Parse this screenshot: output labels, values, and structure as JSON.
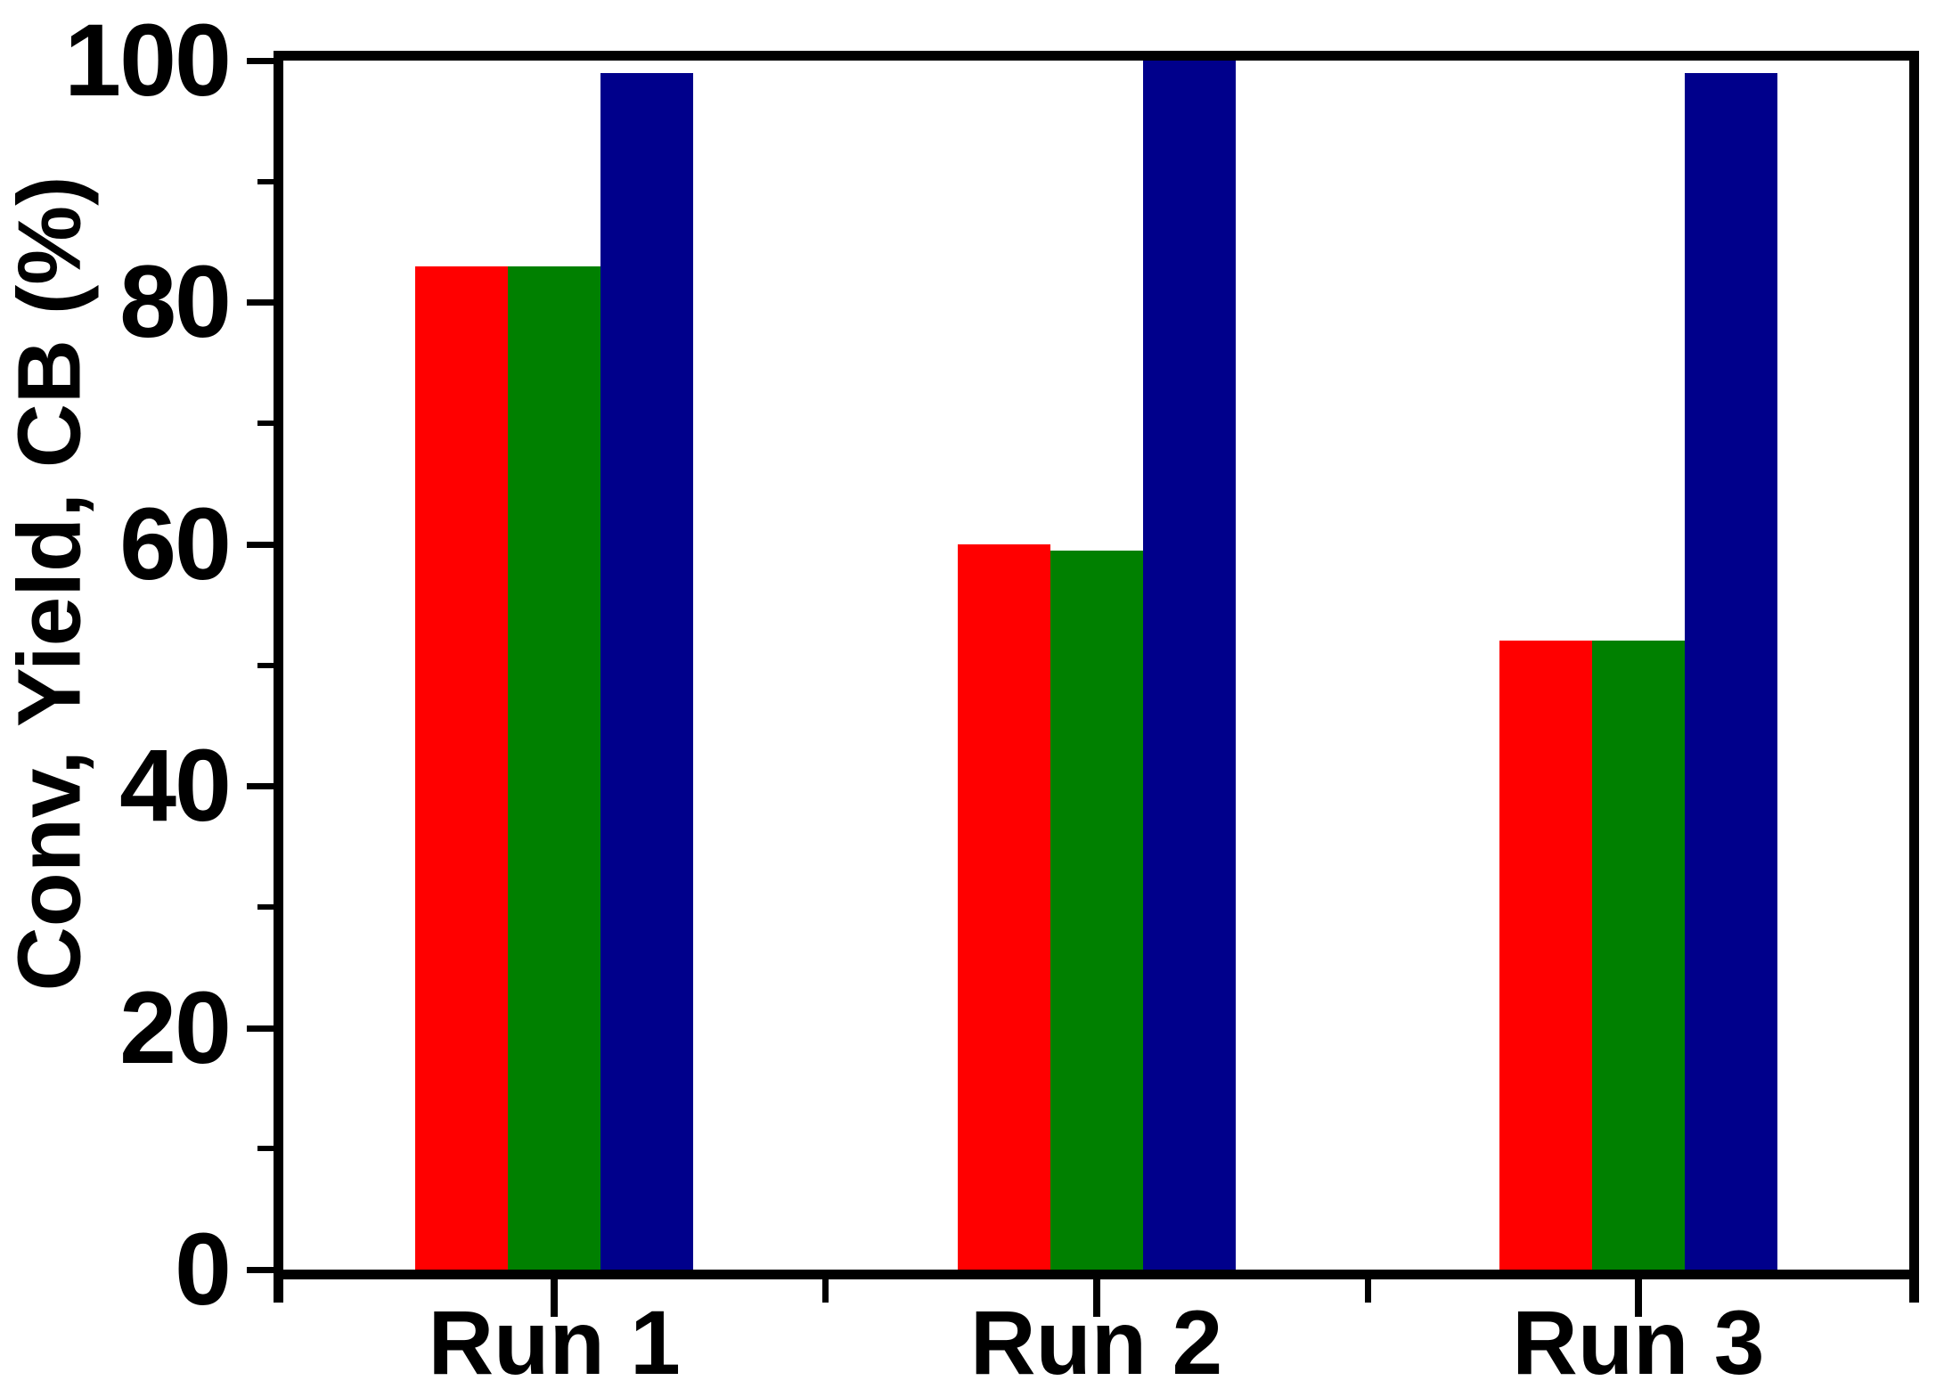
{
  "figure": {
    "background_color": "#ffffff",
    "axis_color": "#000000",
    "text_color": "#000000"
  },
  "chart_data": {
    "type": "bar",
    "title": "",
    "xlabel": "",
    "ylabel": "Conv, Yield, CB (%)",
    "categories": [
      "Run 1",
      "Run 2",
      "Run 3"
    ],
    "series": [
      {
        "name": "Conv",
        "color": "#FF0000",
        "values": [
          83,
          60,
          52
        ]
      },
      {
        "name": "Yield",
        "color": "#008000",
        "values": [
          83,
          59.5,
          52
        ]
      },
      {
        "name": "CB",
        "color": "#00008B",
        "values": [
          99,
          100,
          99
        ]
      }
    ],
    "ylim": [
      0,
      100
    ],
    "y_major_ticks": [
      0,
      20,
      40,
      60,
      80,
      100
    ],
    "y_minor_ticks": [
      10,
      30,
      50,
      70,
      90
    ],
    "grid": false,
    "legend": "none",
    "bar_orientation": "vertical"
  }
}
